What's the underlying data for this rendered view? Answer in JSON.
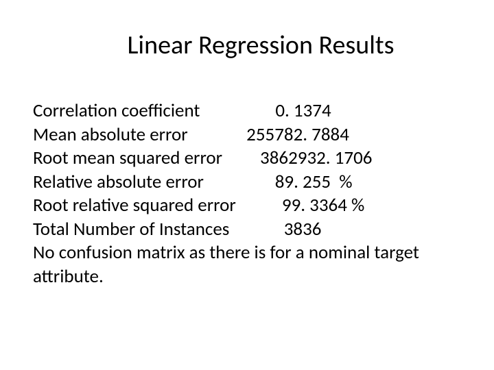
{
  "title": "Linear Regression Results",
  "rows": {
    "r0_label": "Correlation coefficient",
    "r0_value": "0. 1374",
    "r1_label": "Mean absolute error",
    "r1_value": "255782. 7884",
    "r2_label": "Root mean squared error",
    "r2_value": "3862932. 1706",
    "r3_label": "Relative absolute error",
    "r3_value": "89. 255  %",
    "r4_label": "Root relative squared error",
    "r4_value": "99. 3364 %",
    "r5_label": "Total Number of Instances",
    "r5_value": "3836"
  },
  "note": "No confusion matrix as there is for a nominal target attribute.",
  "style": {
    "background_color": "#ffffff",
    "text_color": "#000000",
    "title_fontsize": 38,
    "body_fontsize": 27,
    "font_family": "Calibri"
  }
}
